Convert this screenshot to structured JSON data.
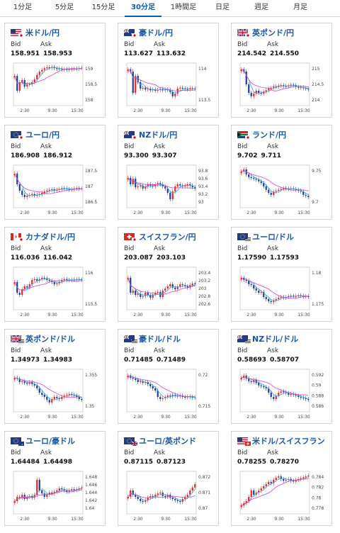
{
  "tabs": [
    {
      "label": "1分足",
      "active": false
    },
    {
      "label": "5分足",
      "active": false
    },
    {
      "label": "15分足",
      "active": false
    },
    {
      "label": "30分足",
      "active": true
    },
    {
      "label": "1時間足",
      "active": false
    },
    {
      "label": "日足",
      "active": false
    },
    {
      "label": "週足",
      "active": false
    },
    {
      "label": "月足",
      "active": false
    }
  ],
  "labels": {
    "bid": "Bid",
    "ask": "Ask"
  },
  "colors": {
    "up": "#e8271f",
    "down": "#1d3f9c",
    "ma_short": "#2aa7e6",
    "ma_long": "#d43fd4",
    "link": "#1a56a8"
  },
  "cards": [
    {
      "name": "米ドル/円",
      "flag": "us-jp",
      "bid": "158.951",
      "ask": "158.953",
      "yticks": [
        "159",
        "158.5",
        "158"
      ],
      "xticks": [
        "2:30",
        "9:30",
        "15:30"
      ]
    },
    {
      "name": "豪ドル/円",
      "flag": "au-jp",
      "bid": "113.627",
      "ask": "113.632",
      "yticks": [
        "114",
        "113.5"
      ],
      "xticks": [
        "2:30",
        "9:30",
        "15:30"
      ]
    },
    {
      "name": "英ポンド/円",
      "flag": "gb-jp",
      "bid": "214.542",
      "ask": "214.550",
      "yticks": [
        "215",
        "214.5",
        "214"
      ],
      "xticks": [
        "2:30",
        "9:30",
        "15:30"
      ]
    },
    {
      "name": "ユーロ/円",
      "flag": "eu-jp",
      "bid": "186.908",
      "ask": "186.912",
      "yticks": [
        "187.5",
        "187",
        "186.5"
      ],
      "xticks": [
        "2:30",
        "9:30",
        "15:30"
      ]
    },
    {
      "name": "NZドル/円",
      "flag": "nz-jp",
      "bid": "93.300",
      "ask": "93.307",
      "yticks": [
        "93.8",
        "93.6",
        "93.4",
        "93.2",
        "93"
      ],
      "xticks": [
        "2:30",
        "9:30",
        "15:30"
      ]
    },
    {
      "name": "ランド/円",
      "flag": "za-jp",
      "bid": "9.702",
      "ask": "9.711",
      "yticks": [
        "9.75",
        "9.7"
      ],
      "xticks": [
        "2:30",
        "9:30",
        "15:30"
      ]
    },
    {
      "name": "カナダドル/円",
      "flag": "ca-jp",
      "bid": "116.036",
      "ask": "116.042",
      "yticks": [
        "116",
        "115.5"
      ],
      "xticks": [
        "2:30",
        "9:30",
        "15:30"
      ]
    },
    {
      "name": "スイスフラン/円",
      "flag": "ch-jp",
      "bid": "203.087",
      "ask": "203.103",
      "yticks": [
        "203.4",
        "203.2",
        "203",
        "202.8",
        "202.6"
      ],
      "xticks": [
        "2:30",
        "9:30",
        "15:30"
      ]
    },
    {
      "name": "ユーロ/ドル",
      "flag": "eu-us",
      "bid": "1.17590",
      "ask": "1.17593",
      "yticks": [
        "1.18",
        "1.175"
      ],
      "xticks": [
        "2:30",
        "9:30",
        "15:30"
      ]
    },
    {
      "name": "英ポンド/ドル",
      "flag": "gb-us",
      "bid": "1.34973",
      "ask": "1.34983",
      "yticks": [
        "1.355",
        "1.35"
      ],
      "xticks": [
        "2:30",
        "9:30",
        "15:30"
      ]
    },
    {
      "name": "豪ドル/ドル",
      "flag": "au-us",
      "bid": "0.71485",
      "ask": "0.71489",
      "yticks": [
        "0.72",
        "0.715"
      ],
      "xticks": [
        "2:30",
        "9:30",
        "15:30"
      ]
    },
    {
      "name": "NZドル/ドル",
      "flag": "nz-us",
      "bid": "0.58693",
      "ask": "0.58707",
      "yticks": [
        "0.592",
        "0.59",
        "0.588",
        "0.586"
      ],
      "xticks": [
        "2:30",
        "9:30",
        "15:30"
      ]
    },
    {
      "name": "ユーロ/豪ドル",
      "flag": "eu-au",
      "bid": "1.64484",
      "ask": "1.64498",
      "yticks": [
        "1.648",
        "1.646",
        "1.644",
        "1.642",
        "1.64"
      ],
      "xticks": [
        "2:30",
        "9:30",
        "15:30"
      ]
    },
    {
      "name": "ユーロ/英ポンド",
      "flag": "eu-gb",
      "bid": "0.87115",
      "ask": "0.87123",
      "yticks": [
        "0.872",
        "0.871",
        "0.87"
      ],
      "xticks": [
        "2:30",
        "9:30",
        "15:30"
      ]
    },
    {
      "name": "米ドル/スイスフラン",
      "flag": "us-ch",
      "bid": "0.78255",
      "ask": "0.78270",
      "yticks": [
        "0.784",
        "0.782",
        "0.78",
        "0.778"
      ],
      "xticks": [
        "2:30",
        "9:30",
        "15:30"
      ]
    }
  ],
  "series": [
    [
      0.7,
      0.35,
      0.55,
      0.6,
      0.45,
      0.5,
      0.5,
      0.55,
      0.62,
      0.72,
      0.8,
      0.84,
      0.88,
      0.9,
      0.89,
      0.91,
      0.88,
      0.86,
      0.87,
      0.85,
      0.86,
      0.84,
      0.85,
      0.86,
      0.87,
      0.86,
      0.88,
      0.89
    ],
    [
      0.85,
      0.8,
      0.3,
      0.7,
      0.55,
      0.4,
      0.42,
      0.38,
      0.4,
      0.36,
      0.38,
      0.35,
      0.37,
      0.39,
      0.36,
      0.38,
      0.37,
      0.32,
      0.22,
      0.28,
      0.4,
      0.42,
      0.4,
      0.39,
      0.38,
      0.41,
      0.4,
      0.39
    ],
    [
      0.85,
      0.8,
      0.5,
      0.3,
      0.22,
      0.28,
      0.35,
      0.3,
      0.28,
      0.33,
      0.36,
      0.4,
      0.42,
      0.45,
      0.44,
      0.47,
      0.48,
      0.46,
      0.45,
      0.47,
      0.49,
      0.48,
      0.44,
      0.42,
      0.43,
      0.41,
      0.4,
      0.38
    ],
    [
      0.8,
      0.55,
      0.4,
      0.3,
      0.25,
      0.28,
      0.3,
      0.32,
      0.28,
      0.3,
      0.32,
      0.35,
      0.38,
      0.4,
      0.42,
      0.43,
      0.4,
      0.42,
      0.44,
      0.46,
      0.45,
      0.44,
      0.42,
      0.43,
      0.45,
      0.46,
      0.44,
      0.45
    ],
    [
      0.7,
      0.55,
      0.68,
      0.48,
      0.5,
      0.52,
      0.45,
      0.5,
      0.55,
      0.52,
      0.5,
      0.55,
      0.58,
      0.55,
      0.5,
      0.45,
      0.35,
      0.2,
      0.38,
      0.5,
      0.55,
      0.52,
      0.5,
      0.52,
      0.55,
      0.52,
      0.48,
      0.45
    ],
    [
      0.85,
      0.9,
      0.78,
      0.72,
      0.7,
      0.68,
      0.66,
      0.62,
      0.58,
      0.5,
      0.42,
      0.35,
      0.3,
      0.38,
      0.4,
      0.42,
      0.44,
      0.46,
      0.45,
      0.44,
      0.45,
      0.44,
      0.42,
      0.4,
      0.38,
      0.3,
      0.28,
      0.25
    ],
    [
      0.65,
      0.4,
      0.35,
      0.48,
      0.55,
      0.52,
      0.6,
      0.7,
      0.72,
      0.68,
      0.72,
      0.75,
      0.74,
      0.7,
      0.68,
      0.65,
      0.6,
      0.62,
      0.66,
      0.7,
      0.72,
      0.7,
      0.69,
      0.71,
      0.7,
      0.72,
      0.71,
      0.7
    ],
    [
      0.75,
      0.4,
      0.45,
      0.35,
      0.38,
      0.3,
      0.32,
      0.4,
      0.35,
      0.28,
      0.36,
      0.4,
      0.42,
      0.3,
      0.45,
      0.5,
      0.55,
      0.6,
      0.52,
      0.48,
      0.55,
      0.6,
      0.58,
      0.55,
      0.52,
      0.58,
      0.62,
      0.6
    ],
    [
      0.75,
      0.7,
      0.68,
      0.6,
      0.58,
      0.5,
      0.45,
      0.4,
      0.42,
      0.3,
      0.25,
      0.2,
      0.18,
      0.22,
      0.25,
      0.28,
      0.3,
      0.28,
      0.3,
      0.32,
      0.33,
      0.31,
      0.32,
      0.34,
      0.33,
      0.31,
      0.32,
      0.3
    ],
    [
      0.8,
      0.78,
      0.7,
      0.72,
      0.68,
      0.66,
      0.7,
      0.65,
      0.62,
      0.55,
      0.45,
      0.4,
      0.35,
      0.28,
      0.22,
      0.3,
      0.35,
      0.32,
      0.3,
      0.35,
      0.38,
      0.4,
      0.42,
      0.4,
      0.38,
      0.35,
      0.3,
      0.28
    ],
    [
      0.85,
      0.8,
      0.78,
      0.75,
      0.7,
      0.72,
      0.68,
      0.7,
      0.65,
      0.6,
      0.55,
      0.5,
      0.35,
      0.3,
      0.32,
      0.35,
      0.38,
      0.36,
      0.4,
      0.38,
      0.36,
      0.38,
      0.35,
      0.34,
      0.36,
      0.35,
      0.33,
      0.34
    ],
    [
      0.8,
      0.85,
      0.78,
      0.72,
      0.7,
      0.75,
      0.68,
      0.62,
      0.6,
      0.58,
      0.55,
      0.45,
      0.35,
      0.3,
      0.38,
      0.45,
      0.48,
      0.46,
      0.44,
      0.4,
      0.42,
      0.4,
      0.38,
      0.35,
      0.33,
      0.32,
      0.3,
      0.28
    ],
    [
      0.3,
      0.4,
      0.38,
      0.45,
      0.35,
      0.4,
      0.42,
      0.38,
      0.45,
      0.8,
      0.55,
      0.48,
      0.4,
      0.45,
      0.5,
      0.48,
      0.52,
      0.55,
      0.6,
      0.58,
      0.55,
      0.52,
      0.55,
      0.58,
      0.56,
      0.58,
      0.6,
      0.62
    ],
    [
      0.4,
      0.55,
      0.45,
      0.4,
      0.35,
      0.3,
      0.28,
      0.32,
      0.38,
      0.42,
      0.4,
      0.45,
      0.48,
      0.5,
      0.42,
      0.4,
      0.45,
      0.38,
      0.35,
      0.32,
      0.3,
      0.28,
      0.35,
      0.4,
      0.45,
      0.55,
      0.62,
      0.7
    ],
    [
      0.2,
      0.25,
      0.3,
      0.4,
      0.55,
      0.45,
      0.5,
      0.55,
      0.6,
      0.65,
      0.7,
      0.75,
      0.72,
      0.8,
      0.85,
      0.88,
      0.82,
      0.78,
      0.8,
      0.82,
      0.78,
      0.76,
      0.8,
      0.82,
      0.84,
      0.86,
      0.88,
      0.9
    ]
  ]
}
